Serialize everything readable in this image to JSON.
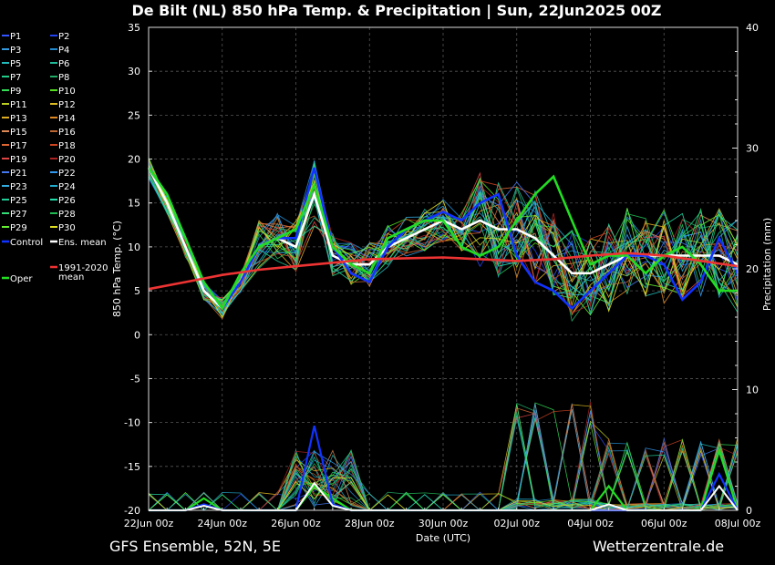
{
  "chart_data": {
    "type": "line",
    "title": "De Bilt  (NL)  850 hPa Temp. & Precipitation | Sun, 22Jun2025 00Z",
    "ylabel": "850 hPa Temp. (°C)",
    "y2label": "Precipitation (mm)",
    "xlabel": "Date (UTC)",
    "ylim": [
      -20,
      35
    ],
    "y2lim": [
      0,
      40
    ],
    "yticks": [
      "35",
      "30",
      "25",
      "20",
      "15",
      "10",
      "5",
      "0",
      "-5",
      "-10",
      "-15",
      "-20"
    ],
    "y2ticks": [
      "40",
      "30",
      "20",
      "10",
      "0"
    ],
    "xticks": [
      "22Jun 00z",
      "24Jun 00z",
      "26Jun 00z",
      "28Jun 00z",
      "30Jun 00z",
      "02Jul 00z",
      "04Jul 00z",
      "06Jul 00z",
      "08Jul 00z"
    ],
    "grid": true,
    "legend_position": "left",
    "legend": [
      {
        "name": "P1",
        "color": "#3355ff"
      },
      {
        "name": "P2",
        "color": "#2244ee"
      },
      {
        "name": "P3",
        "color": "#3399dd"
      },
      {
        "name": "P4",
        "color": "#2288cc"
      },
      {
        "name": "P5",
        "color": "#22bbbb"
      },
      {
        "name": "P6",
        "color": "#22bb99"
      },
      {
        "name": "P7",
        "color": "#22cc88"
      },
      {
        "name": "P8",
        "color": "#22aa66"
      },
      {
        "name": "P9",
        "color": "#33dd55"
      },
      {
        "name": "P10",
        "color": "#55dd22"
      },
      {
        "name": "P11",
        "color": "#bbcc22"
      },
      {
        "name": "P12",
        "color": "#ddbb22"
      },
      {
        "name": "P13",
        "color": "#ddaa22"
      },
      {
        "name": "P14",
        "color": "#dd8822"
      },
      {
        "name": "P15",
        "color": "#dd8855"
      },
      {
        "name": "P16",
        "color": "#bb6633"
      },
      {
        "name": "P17",
        "color": "#dd6633"
      },
      {
        "name": "P18",
        "color": "#cc4422"
      },
      {
        "name": "P19",
        "color": "#dd4444"
      },
      {
        "name": "P20",
        "color": "#aa2222"
      },
      {
        "name": "P21",
        "color": "#4477ee"
      },
      {
        "name": "P22",
        "color": "#3399ee"
      },
      {
        "name": "P23",
        "color": "#33aadd"
      },
      {
        "name": "P24",
        "color": "#22aacc"
      },
      {
        "name": "P25",
        "color": "#22cc99"
      },
      {
        "name": "P26",
        "color": "#22ddaa"
      },
      {
        "name": "P27",
        "color": "#33dd77"
      },
      {
        "name": "P28",
        "color": "#22bb55"
      },
      {
        "name": "P29",
        "color": "#66ee33"
      },
      {
        "name": "P30",
        "color": "#dddd22"
      },
      {
        "name": "Control",
        "color": "#1133ff"
      },
      {
        "name": "Ens. mean",
        "color": "#ffffff"
      },
      {
        "name": "Oper",
        "color": "#22dd22"
      },
      {
        "name": "1991-2020 mean",
        "color": "#ee3333"
      }
    ],
    "series": [
      {
        "name": "Ens. mean",
        "color": "#ffffff",
        "x_days": [
          0,
          0.5,
          1,
          1.5,
          2,
          2.5,
          3,
          3.5,
          4,
          4.5,
          5,
          5.5,
          6,
          6.5,
          7,
          7.5,
          8,
          8.5,
          9,
          9.5,
          10,
          10.5,
          11,
          11.5,
          12,
          12.5,
          13,
          13.5,
          14,
          14.5,
          15,
          15.5,
          16
        ],
        "values": [
          19,
          15,
          10,
          5,
          3,
          6,
          10,
          11,
          10,
          16,
          9,
          8,
          8,
          10,
          11,
          12,
          13,
          12,
          13,
          12,
          12,
          11,
          9,
          7,
          7,
          8,
          9,
          9,
          9,
          9,
          9,
          9,
          8
        ]
      },
      {
        "name": "Control",
        "color": "#1133ff",
        "x_days": [
          0,
          0.5,
          1,
          1.5,
          2,
          2.5,
          3,
          3.5,
          4,
          4.5,
          5,
          5.5,
          6,
          6.5,
          7,
          7.5,
          8,
          8.5,
          9,
          9.5,
          10,
          10.5,
          11,
          11.5,
          12,
          12.5,
          13,
          13.5,
          14,
          14.5,
          15,
          15.5,
          16
        ],
        "values": [
          19,
          16,
          11,
          6,
          3,
          6,
          10,
          11,
          11,
          19,
          10,
          7,
          6,
          10,
          12,
          13,
          14,
          13,
          15,
          16,
          9,
          6,
          5,
          3,
          5,
          7,
          9,
          9,
          8,
          4,
          6,
          11,
          7
        ]
      },
      {
        "name": "Oper",
        "color": "#22dd22",
        "x_days": [
          0,
          0.5,
          1,
          1.5,
          2,
          2.5,
          3,
          3.5,
          4,
          4.5,
          5,
          5.5,
          6,
          6.5,
          7,
          7.5,
          8,
          8.5,
          9,
          9.5,
          10,
          10.5,
          11,
          11.5,
          12,
          12.5,
          13,
          13.5,
          14,
          14.5,
          15,
          15.5,
          16
        ],
        "values": [
          19,
          16,
          11,
          6,
          3,
          7,
          10,
          11,
          12,
          17,
          10,
          8,
          7,
          11,
          12,
          13,
          13,
          10,
          9,
          10,
          13,
          16,
          18,
          13,
          8,
          9,
          9,
          7,
          9,
          10,
          8,
          5,
          5
        ]
      },
      {
        "name": "1991-2020 mean",
        "color": "#ee3333",
        "x_days": [
          0,
          1,
          2,
          3,
          4,
          5,
          6,
          7,
          8,
          9,
          10,
          11,
          12,
          13,
          14,
          15,
          16
        ],
        "values": [
          5.2,
          6,
          6.8,
          7.4,
          7.8,
          8.2,
          8.6,
          8.7,
          8.8,
          8.6,
          8.4,
          8.6,
          9.0,
          9.3,
          9.0,
          8.4,
          7.8
        ]
      }
    ],
    "precip_control_mm": [
      0,
      0,
      0,
      0.5,
      0,
      0,
      0,
      0,
      0,
      7,
      0.5,
      0,
      0,
      0,
      0,
      0,
      0,
      0,
      0,
      0,
      0,
      0,
      0,
      0,
      0,
      0,
      0,
      0,
      0,
      0,
      0,
      3,
      0
    ],
    "precip_oper_mm": [
      0,
      0,
      0,
      1,
      0,
      0,
      0,
      0,
      0,
      2,
      1,
      0,
      0,
      0,
      0,
      0,
      0,
      0,
      0,
      0,
      0,
      0,
      0,
      0,
      0,
      2,
      0,
      0,
      0,
      0,
      0,
      5,
      0
    ]
  },
  "footer": {
    "left": "GFS Ensemble, 52N, 5E",
    "right": "Wetterzentrale.de"
  }
}
